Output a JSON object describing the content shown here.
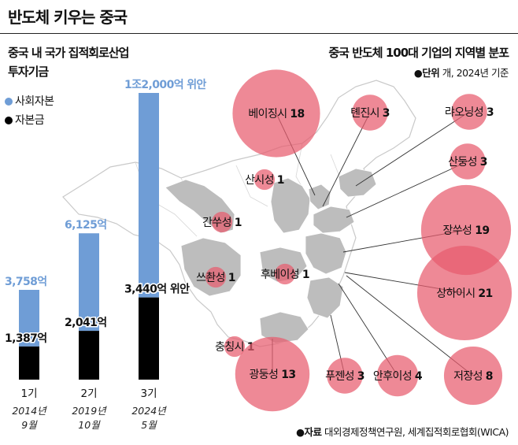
{
  "title": "반도체 키우는 중국",
  "chart_data": [
    {
      "type": "bar",
      "title": "중국 내 국가 집적회로산업 투자기금",
      "title_lines": [
        "중국 내 국가 집적회로산업",
        "투자기금"
      ],
      "legend": [
        {
          "name": "사회자본",
          "color": "#6f9dd6"
        },
        {
          "name": "자본금",
          "color": "#000000"
        }
      ],
      "categories": [
        "1기",
        "2기",
        "3기"
      ],
      "periods": [
        [
          "2014년",
          "9월"
        ],
        [
          "2019년",
          "10월"
        ],
        [
          "2024년",
          "5월"
        ]
      ],
      "series": [
        {
          "name": "자본금",
          "values": [
            1387,
            2041,
            3440
          ],
          "labels": [
            "1,387억",
            "2,041억",
            "3,440억 위안"
          ]
        },
        {
          "name": "사회자본",
          "values": [
            3758,
            6125,
            12000
          ],
          "labels": [
            "3,758억",
            "6,125억",
            "1조2,000억 위안"
          ]
        }
      ],
      "unit": "억 위안",
      "ylim": [
        0,
        12000
      ]
    },
    {
      "type": "bubble-map",
      "title": "중국 반도체 100대 기업의 지역별 분포",
      "unit_prefix": "●단위",
      "unit_text": "개, 2024년 기준",
      "bubble_color": "#e85c6e",
      "regions": [
        {
          "name": "베이징시",
          "value": 18
        },
        {
          "name": "톈진시",
          "value": 3
        },
        {
          "name": "랴오닝성",
          "value": 3
        },
        {
          "name": "산둥성",
          "value": 3
        },
        {
          "name": "산시성",
          "value": 1
        },
        {
          "name": "간쑤성",
          "value": 1
        },
        {
          "name": "장쑤성",
          "value": 19
        },
        {
          "name": "쓰촨성",
          "value": 1
        },
        {
          "name": "후베이성",
          "value": 1
        },
        {
          "name": "상하이시",
          "value": 21
        },
        {
          "name": "충칭시",
          "value": 1
        },
        {
          "name": "광둥성",
          "value": 13
        },
        {
          "name": "푸젠성",
          "value": 3
        },
        {
          "name": "안후이성",
          "value": 4
        },
        {
          "name": "저장성",
          "value": 8
        }
      ],
      "source_prefix": "●자료",
      "source_text": "대외경제정책연구원, 세계집적회로협회(WICA)"
    }
  ]
}
